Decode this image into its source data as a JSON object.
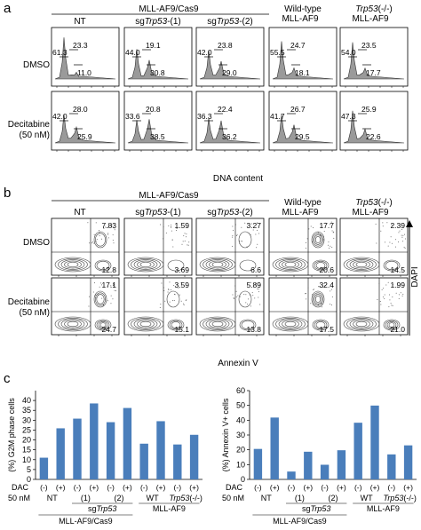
{
  "panel_a": {
    "letter": "a",
    "group_header": "MLL-AF9/Cas9",
    "col_labels": [
      "NT",
      "sgTrp53-(1)",
      "sgTrp53-(2)",
      "Wild-type",
      "Trp53(-/-)"
    ],
    "col_sublabel": "MLL-AF9",
    "row_labels": [
      "DMSO",
      "Decitabine",
      "(50 nM)"
    ],
    "xlabel": "DNA content",
    "cells": [
      [
        {
          "g1": "61.3",
          "s": "23.3",
          "g2": "11.0"
        },
        {
          "g1": "44.0",
          "s": "19.1",
          "g2": "30.8"
        },
        {
          "g1": "42.0",
          "s": "23.8",
          "g2": "29.0"
        },
        {
          "g1": "55.5",
          "s": "24.7",
          "g2": "18.1"
        },
        {
          "g1": "54.0",
          "s": "23.5",
          "g2": "17.7"
        }
      ],
      [
        {
          "g1": "42.0",
          "s": "28.0",
          "g2": "25.9"
        },
        {
          "g1": "33.6",
          "s": "20.8",
          "g2": "38.5"
        },
        {
          "g1": "36.3",
          "s": "22.4",
          "g2": "36.2"
        },
        {
          "g1": "41.7",
          "s": "26.7",
          "g2": "29.5"
        },
        {
          "g1": "47.3",
          "s": "25.9",
          "g2": "22.6"
        }
      ]
    ]
  },
  "panel_b": {
    "letter": "b",
    "group_header": "MLL-AF9/Cas9",
    "col_labels": [
      "NT",
      "sgTrp53-(1)",
      "sgTrp53-(2)",
      "Wild-type",
      "Trp53(-/-)"
    ],
    "col_sublabel": "MLL-AF9",
    "row_labels": [
      "DMSO",
      "Decitabine",
      "(50 nM)"
    ],
    "xlabel": "Annexin V",
    "ylabel": "DAPI",
    "cells": [
      [
        {
          "ur": "7.83",
          "lr": "12.8"
        },
        {
          "ur": "1.59",
          "lr": "3.69"
        },
        {
          "ur": "3.27",
          "lr": "6.6"
        },
        {
          "ur": "17.7",
          "lr": "20.6"
        },
        {
          "ur": "2.39",
          "lr": "14.5"
        }
      ],
      [
        {
          "ur": "17.1",
          "lr": "24.7"
        },
        {
          "ur": "3.59",
          "lr": "15.1"
        },
        {
          "ur": "5.89",
          "lr": "13.8"
        },
        {
          "ur": "32.4",
          "lr": "17.5"
        },
        {
          "ur": "1.99",
          "lr": "21.0"
        }
      ]
    ]
  },
  "panel_c": {
    "letter": "c",
    "dac_label": "DAC",
    "dac_unit": "50 nM",
    "dac_signs": [
      "(-)",
      "(+)",
      "(-)",
      "(+)",
      "(-)",
      "(+)",
      "(-)",
      "(+)",
      "(-)",
      "(+)"
    ],
    "group_nt": "NT",
    "group_1": "(1)",
    "group_2": "(2)",
    "group_sg": "sgTrp53",
    "group_wt": "WT",
    "group_ko": "Trp53(-/-)",
    "footer_left": "MLL-AF9/Cas9",
    "footer_right": "MLL-AF9",
    "bar_color": "#4a7ebb"
  },
  "chart_data": [
    {
      "type": "bar",
      "categories": [
        "NT DMSO",
        "NT DAC",
        "sgTrp53-(1) DMSO",
        "sgTrp53-(1) DAC",
        "sgTrp53-(2) DMSO",
        "sgTrp53-(2) DAC",
        "WT DMSO",
        "WT DAC",
        "Trp53(-/-) DMSO",
        "Trp53(-/-) DAC"
      ],
      "values": [
        11.0,
        25.9,
        30.8,
        38.5,
        29.0,
        36.2,
        18.1,
        29.5,
        17.7,
        22.6
      ],
      "ylabel": "(%) G2M phase cells",
      "ylim": [
        0,
        45
      ],
      "yticks": [
        0,
        5,
        10,
        15,
        20,
        25,
        30,
        35,
        40
      ],
      "grid": false
    },
    {
      "type": "bar",
      "categories": [
        "NT DMSO",
        "NT DAC",
        "sgTrp53-(1) DMSO",
        "sgTrp53-(1) DAC",
        "sgTrp53-(2) DMSO",
        "sgTrp53-(2) DAC",
        "WT DMSO",
        "WT DAC",
        "Trp53(-/-) DMSO",
        "Trp53(-/-) DAC"
      ],
      "values": [
        20.6,
        41.8,
        5.3,
        18.7,
        9.9,
        19.7,
        38.3,
        49.9,
        16.9,
        23.0
      ],
      "ylabel": "(%) Annexin V+ cells",
      "ylim": [
        0,
        60
      ],
      "yticks": [
        0,
        10,
        20,
        30,
        40,
        50,
        60
      ],
      "grid": false
    }
  ]
}
